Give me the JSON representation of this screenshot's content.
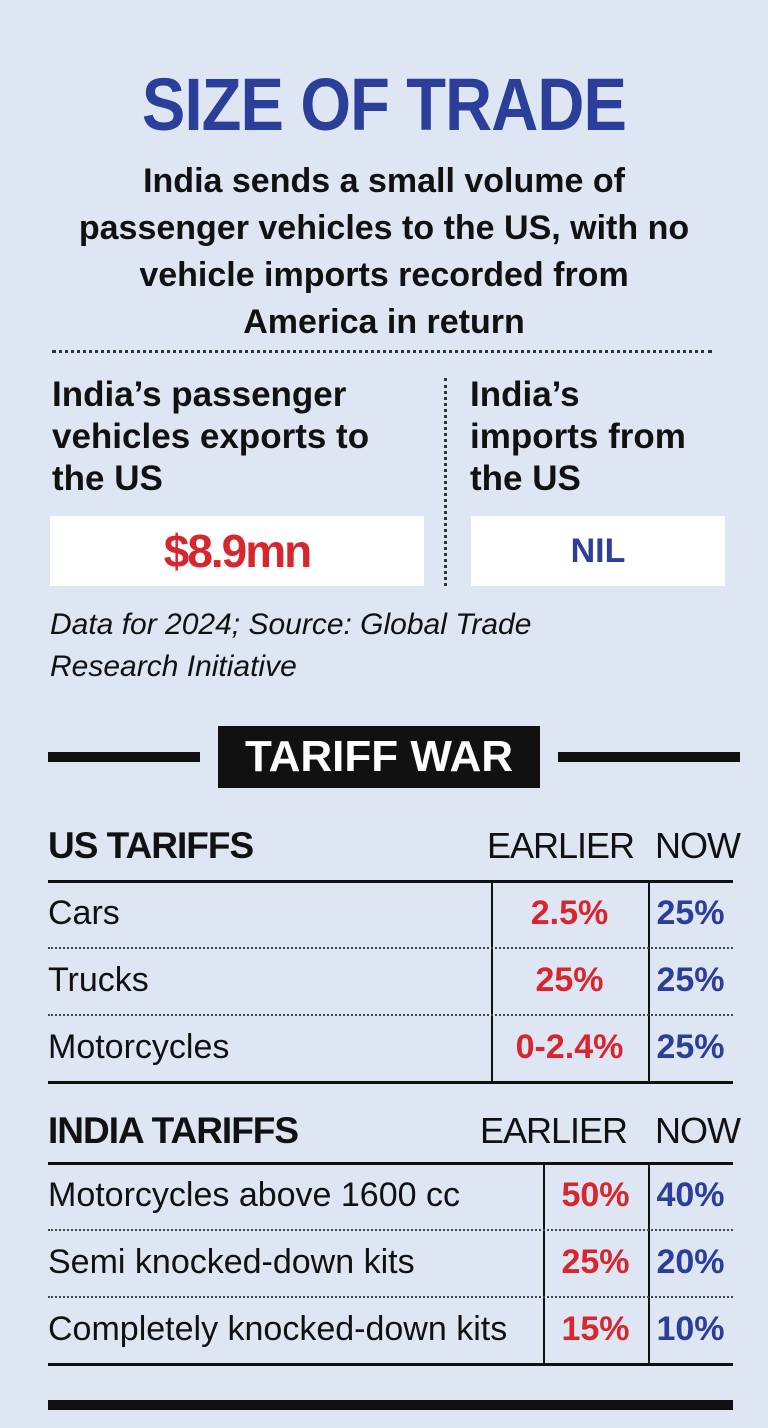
{
  "header": {
    "title": "SIZE OF TRADE",
    "subtitle": "India sends a small volume of passenger vehicles to the US, with no vehicle imports recorded from America in return"
  },
  "stats": [
    {
      "label": "India’s passenger vehicles exports to the US",
      "value": "$8.9mn"
    },
    {
      "label": "India’s imports from the US",
      "value": "NIL"
    }
  ],
  "note": "Data for 2024; Source: Global Trade Research Initiative",
  "section": {
    "title": "TARIFF WAR"
  },
  "tables": [
    {
      "title": "US TARIFFS",
      "columns": [
        "EARLIER",
        "NOW"
      ],
      "rows": [
        [
          "Cars",
          "2.5%",
          "25%"
        ],
        [
          "Trucks",
          "25%",
          "25%"
        ],
        [
          "Motorcycles",
          "0-2.4%",
          "25%"
        ]
      ]
    },
    {
      "title": "INDIA TARIFFS",
      "columns": [
        "EARLIER",
        "NOW"
      ],
      "rows": [
        [
          "Motorcycles above 1600 cc",
          "50%",
          "40%"
        ],
        [
          "Semi knocked-down kits",
          "25%",
          "20%"
        ],
        [
          "Completely knocked-down kits",
          "15%",
          "10%"
        ]
      ]
    }
  ]
}
